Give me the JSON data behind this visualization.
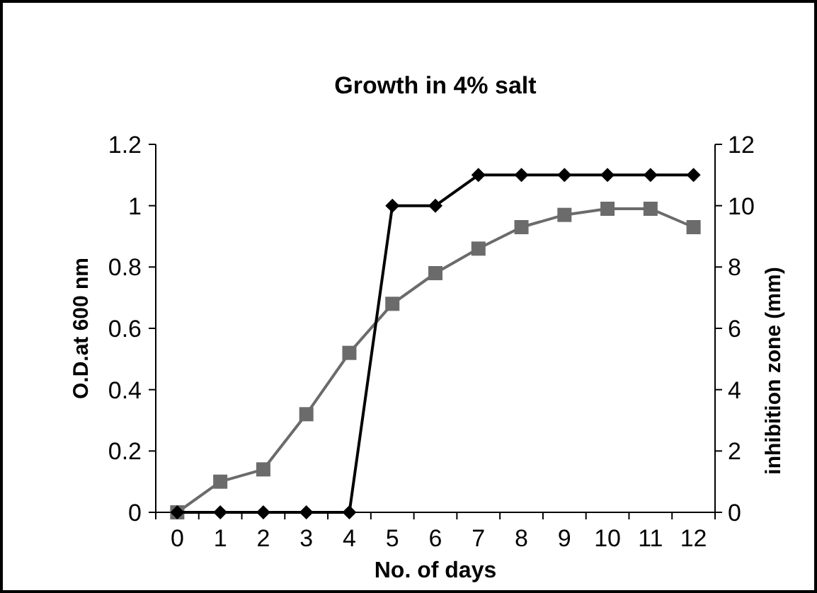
{
  "chart_data": {
    "type": "line",
    "title": "Growth in 4% salt",
    "xlabel": "No. of days",
    "ylabel": "O.D.at 600 nm",
    "y2label": "inhibition zone (mm)",
    "categories": [
      "0",
      "1",
      "2",
      "3",
      "4",
      "5",
      "6",
      "7",
      "8",
      "9",
      "10",
      "11",
      "12"
    ],
    "ylim": [
      0,
      1.2
    ],
    "yticks": [
      0,
      0.2,
      0.4,
      0.6,
      0.8,
      1,
      1.2
    ],
    "y2lim": [
      0,
      12
    ],
    "y2ticks": [
      0,
      2,
      4,
      6,
      8,
      10,
      12
    ],
    "grid": false,
    "line_style": "solid",
    "series": [
      {
        "color": "#6b6b6b",
        "marker": "square",
        "values": [
          0,
          0.1,
          0.14,
          0.32,
          0.52,
          0.68,
          0.78,
          0.86,
          0.93,
          0.97,
          0.99,
          0.99,
          0.93
        ]
      },
      {
        "color": "#000000",
        "marker": "diamond",
        "axis": "y2",
        "values": [
          0,
          0,
          0,
          0,
          0,
          10,
          10,
          11,
          11,
          11,
          11,
          11,
          11
        ]
      }
    ]
  }
}
